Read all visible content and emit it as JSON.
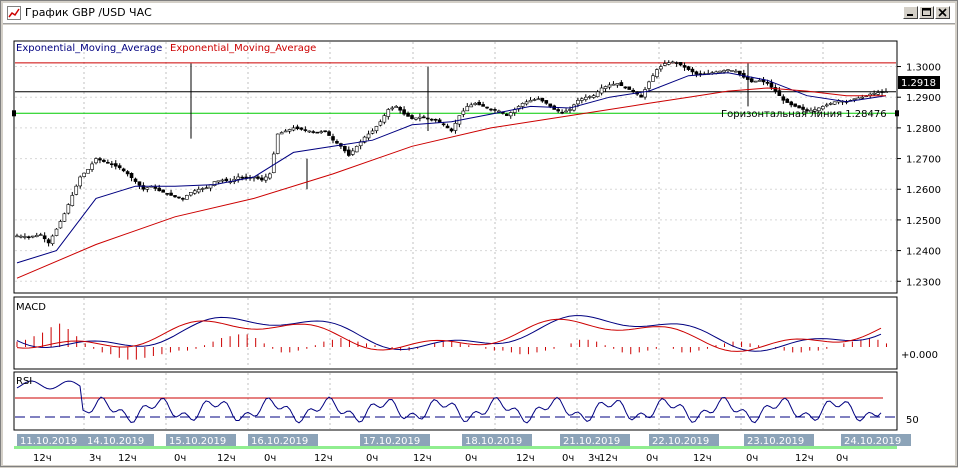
{
  "window": {
    "title": "График GBP /USD  ЧАС",
    "buttons": [
      "minimize",
      "restore",
      "close"
    ]
  },
  "chart_data": [
    {
      "type": "line",
      "name": "price",
      "indicator_labels": [
        {
          "text": "Exponential_Moving_Average",
          "color": "#000080"
        },
        {
          "text": "Exponential_Moving_Average",
          "color": "#cc0000"
        }
      ],
      "yticks": [
        "1.3000",
        "1.2900",
        "1.2800",
        "1.2700",
        "1.2600",
        "1.2500",
        "1.2400",
        "1.2300"
      ],
      "ylim": [
        1.2265,
        1.308
      ],
      "current_price": "1.2918",
      "horizontal_line_label": "Горизонтальная линия 1.28476",
      "horizontal_lines": [
        {
          "value": 1.3012,
          "color": "#cc0000"
        },
        {
          "value": 1.2918,
          "color": "#000000"
        },
        {
          "value": 1.28476,
          "color": "#00cc00"
        }
      ],
      "price_path": [
        [
          0,
          1.2448
        ],
        [
          3,
          1.2445
        ],
        [
          6,
          1.2452
        ],
        [
          8,
          1.2425
        ],
        [
          10,
          1.247
        ],
        [
          12,
          1.252
        ],
        [
          14,
          1.258
        ],
        [
          16,
          1.264
        ],
        [
          18,
          1.2665
        ],
        [
          20,
          1.27
        ],
        [
          22,
          1.269
        ],
        [
          24,
          1.268
        ],
        [
          26,
          1.267
        ],
        [
          28,
          1.265
        ],
        [
          30,
          1.2625
        ],
        [
          32,
          1.26
        ],
        [
          34,
          1.261
        ],
        [
          36,
          1.2595
        ],
        [
          38,
          1.2585
        ],
        [
          40,
          1.2575
        ],
        [
          42,
          1.257
        ],
        [
          44,
          1.259
        ],
        [
          46,
          1.26
        ],
        [
          48,
          1.2605
        ],
        [
          50,
          1.2625
        ],
        [
          52,
          1.263
        ],
        [
          54,
          1.2625
        ],
        [
          56,
          1.264
        ],
        [
          58,
          1.2635
        ],
        [
          60,
          1.264
        ],
        [
          62,
          1.263
        ],
        [
          64,
          1.265
        ],
        [
          66,
          1.278
        ],
        [
          68,
          1.279
        ],
        [
          70,
          1.28
        ],
        [
          72,
          1.2795
        ],
        [
          74,
          1.279
        ],
        [
          76,
          1.2785
        ],
        [
          78,
          1.279
        ],
        [
          80,
          1.276
        ],
        [
          82,
          1.274
        ],
        [
          84,
          1.271
        ],
        [
          86,
          1.274
        ],
        [
          88,
          1.277
        ],
        [
          90,
          1.279
        ],
        [
          92,
          1.282
        ],
        [
          94,
          1.286
        ],
        [
          96,
          1.287
        ],
        [
          98,
          1.2845
        ],
        [
          100,
          1.283
        ],
        [
          102,
          1.2835
        ],
        [
          104,
          1.283
        ],
        [
          106,
          1.2825
        ],
        [
          108,
          1.281
        ],
        [
          110,
          1.279
        ],
        [
          112,
          1.284
        ],
        [
          114,
          1.287
        ],
        [
          116,
          1.288
        ],
        [
          118,
          1.287
        ],
        [
          120,
          1.286
        ],
        [
          122,
          1.2855
        ],
        [
          124,
          1.284
        ],
        [
          126,
          1.286
        ],
        [
          128,
          1.288
        ],
        [
          130,
          1.289
        ],
        [
          132,
          1.2895
        ],
        [
          134,
          1.288
        ],
        [
          136,
          1.286
        ],
        [
          138,
          1.285
        ],
        [
          140,
          1.286
        ],
        [
          142,
          1.289
        ],
        [
          144,
          1.29
        ],
        [
          146,
          1.2905
        ],
        [
          148,
          1.293
        ],
        [
          150,
          1.294
        ],
        [
          152,
          1.2945
        ],
        [
          154,
          1.293
        ],
        [
          156,
          1.292
        ],
        [
          158,
          1.29
        ],
        [
          160,
          1.295
        ],
        [
          162,
          1.299
        ],
        [
          164,
          1.301
        ],
        [
          166,
          1.3015
        ],
        [
          168,
          1.3005
        ],
        [
          170,
          1.299
        ],
        [
          172,
          1.2975
        ],
        [
          174,
          1.2975
        ],
        [
          176,
          1.298
        ],
        [
          178,
          1.2985
        ],
        [
          180,
          1.299
        ],
        [
          182,
          1.2985
        ],
        [
          184,
          1.2965
        ],
        [
          186,
          1.295
        ],
        [
          188,
          1.2955
        ],
        [
          190,
          1.2945
        ],
        [
          192,
          1.292
        ],
        [
          194,
          1.289
        ],
        [
          196,
          1.2875
        ],
        [
          198,
          1.2865
        ],
        [
          200,
          1.2855
        ],
        [
          202,
          1.286
        ],
        [
          204,
          1.287
        ],
        [
          206,
          1.288
        ],
        [
          208,
          1.289
        ],
        [
          210,
          1.2885
        ],
        [
          212,
          1.2895
        ],
        [
          214,
          1.29
        ],
        [
          216,
          1.291
        ],
        [
          218,
          1.2915
        ],
        [
          220,
          1.2918
        ]
      ],
      "ema_fast": [
        [
          0,
          1.236
        ],
        [
          10,
          1.24
        ],
        [
          20,
          1.257
        ],
        [
          30,
          1.261
        ],
        [
          40,
          1.261
        ],
        [
          50,
          1.2615
        ],
        [
          60,
          1.264
        ],
        [
          70,
          1.272
        ],
        [
          80,
          1.274
        ],
        [
          90,
          1.276
        ],
        [
          100,
          1.281
        ],
        [
          110,
          1.282
        ],
        [
          120,
          1.2845
        ],
        [
          130,
          1.287
        ],
        [
          140,
          1.2865
        ],
        [
          150,
          1.29
        ],
        [
          160,
          1.292
        ],
        [
          170,
          1.297
        ],
        [
          180,
          1.298
        ],
        [
          190,
          1.2955
        ],
        [
          200,
          1.2905
        ],
        [
          210,
          1.2885
        ],
        [
          220,
          1.2905
        ]
      ],
      "ema_slow": [
        [
          0,
          1.231
        ],
        [
          20,
          1.242
        ],
        [
          40,
          1.251
        ],
        [
          60,
          1.257
        ],
        [
          80,
          1.265
        ],
        [
          100,
          1.274
        ],
        [
          120,
          1.28
        ],
        [
          140,
          1.284
        ],
        [
          160,
          1.288
        ],
        [
          170,
          1.29
        ],
        [
          180,
          1.292
        ],
        [
          190,
          1.293
        ],
        [
          200,
          1.292
        ],
        [
          210,
          1.2905
        ],
        [
          220,
          1.2905
        ]
      ]
    },
    {
      "type": "area",
      "name": "MACD",
      "title": "MACD",
      "ytick": "+0.000",
      "histogram": [
        0.3,
        0.4,
        0.6,
        0.8,
        1.1,
        1.3,
        1.0,
        0.6,
        0.2,
        -0.1,
        -0.3,
        -0.4,
        -0.6,
        -0.7,
        -0.7,
        -0.6,
        -0.5,
        -0.4,
        -0.3,
        -0.2,
        -0.2,
        -0.1,
        0.1,
        0.3,
        0.5,
        0.6,
        0.7,
        0.7,
        0.5,
        0.2,
        -0.1,
        -0.3,
        -0.3,
        -0.2,
        -0.1,
        0.1,
        0.3,
        0.4,
        0.5,
        0.4,
        0.3,
        0.2,
        0.1,
        0.0,
        -0.1,
        -0.2,
        -0.2,
        -0.1,
        0.0,
        0.2,
        0.3,
        0.3,
        0.2,
        0.1,
        0.0,
        -0.1,
        -0.2,
        -0.2,
        -0.3,
        -0.4,
        -0.4,
        -0.3,
        -0.2,
        -0.1,
        0.0,
        0.2,
        0.4,
        0.4,
        0.3,
        0.1,
        -0.1,
        -0.3,
        -0.4,
        -0.3,
        -0.2,
        -0.1,
        0.0,
        -0.1,
        -0.3,
        -0.3,
        -0.2,
        -0.1,
        0.1,
        0.2,
        0.3,
        0.3,
        0.2,
        0.1,
        0.0,
        -0.1,
        -0.2,
        -0.3,
        -0.3,
        -0.2,
        -0.2,
        -0.1,
        0.0,
        0.2,
        0.3,
        0.4,
        0.5,
        0.4,
        0.2
      ]
    },
    {
      "type": "line",
      "name": "RSI",
      "title": "RSI",
      "ytick": "50",
      "levels": [
        {
          "value": 70,
          "color": "#cc0000"
        },
        {
          "value": 50,
          "color": "#000080"
        }
      ]
    }
  ],
  "xaxis": {
    "dates": [
      "11.10.2019",
      "14.10.2019",
      "15.10.2019",
      "16.10.2019",
      "17.10.2019",
      "18.10.2019",
      "21.10.2019",
      "22.10.2019",
      "23.10.2019",
      "24.10.2019"
    ],
    "hours": [
      "12ч",
      "3ч",
      "12ч",
      "0ч",
      "12ч",
      "0ч",
      "12ч",
      "0ч",
      "12ч",
      "0ч",
      "12ч",
      "0ч",
      "3ч",
      "12ч",
      "0ч",
      "12ч",
      "0ч",
      "12ч",
      "0ч"
    ]
  }
}
